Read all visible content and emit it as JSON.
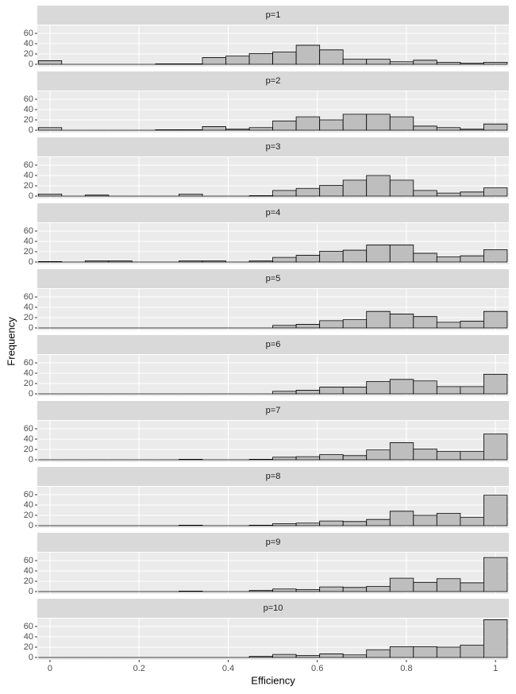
{
  "chart_data": [
    {
      "type": "histogram",
      "title": "p=1",
      "bins": [
        -0.0263,
        0.0263,
        0.0789,
        0.1316,
        0.1842,
        0.2368,
        0.2895,
        0.3421,
        0.3947,
        0.4474,
        0.5,
        0.5526,
        0.6053,
        0.6579,
        0.7105,
        0.7632,
        0.8158,
        0.8684,
        0.9211,
        0.9737,
        1.0263
      ],
      "counts": [
        7,
        0,
        0,
        0,
        0,
        1,
        1,
        13,
        16,
        21,
        24,
        37,
        28,
        10,
        10,
        5,
        8,
        4,
        2,
        4
      ],
      "xlim": [
        -0.0285,
        1.03
      ],
      "ylim": [
        -4.6,
        75.4
      ],
      "yticks": [
        0,
        20,
        40,
        60
      ],
      "color": "#bebebe"
    },
    {
      "type": "histogram",
      "title": "p=2",
      "bins": [
        -0.0263,
        0.0263,
        0.0789,
        0.1316,
        0.1842,
        0.2368,
        0.2895,
        0.3421,
        0.3947,
        0.4474,
        0.5,
        0.5526,
        0.6053,
        0.6579,
        0.7105,
        0.7632,
        0.8158,
        0.8684,
        0.9211,
        0.9737,
        1.0263
      ],
      "counts": [
        5,
        0,
        0,
        0,
        0,
        1,
        1,
        7,
        2,
        5,
        18,
        26,
        20,
        31,
        31,
        26,
        8,
        5,
        2,
        12
      ],
      "xlim": [
        -0.0285,
        1.03
      ],
      "ylim": [
        -4.6,
        75.4
      ],
      "yticks": [
        0,
        20,
        40,
        60
      ],
      "color": "#bebebe"
    },
    {
      "type": "histogram",
      "title": "p=3",
      "bins": [
        -0.0263,
        0.0263,
        0.0789,
        0.1316,
        0.1842,
        0.2368,
        0.2895,
        0.3421,
        0.3947,
        0.4474,
        0.5,
        0.5526,
        0.6053,
        0.6579,
        0.7105,
        0.7632,
        0.8158,
        0.8684,
        0.9211,
        0.9737,
        1.0263
      ],
      "counts": [
        4,
        0,
        2,
        0,
        0,
        0,
        4,
        0,
        0,
        1,
        11,
        15,
        21,
        31,
        40,
        31,
        11,
        6,
        8,
        16
      ],
      "xlim": [
        -0.0285,
        1.03
      ],
      "ylim": [
        -4.6,
        75.4
      ],
      "yticks": [
        0,
        20,
        40,
        60
      ],
      "color": "#bebebe"
    },
    {
      "type": "histogram",
      "title": "p=4",
      "bins": [
        -0.0263,
        0.0263,
        0.0789,
        0.1316,
        0.1842,
        0.2368,
        0.2895,
        0.3421,
        0.3947,
        0.4474,
        0.5,
        0.5526,
        0.6053,
        0.6579,
        0.7105,
        0.7632,
        0.8158,
        0.8684,
        0.9211,
        0.9737,
        1.0263
      ],
      "counts": [
        1,
        0,
        2,
        2,
        0,
        0,
        2,
        2,
        0,
        2,
        9,
        13,
        21,
        23,
        33,
        33,
        17,
        10,
        12,
        24
      ],
      "xlim": [
        -0.0285,
        1.03
      ],
      "ylim": [
        -4.6,
        75.4
      ],
      "yticks": [
        0,
        20,
        40,
        60
      ],
      "color": "#bebebe"
    },
    {
      "type": "histogram",
      "title": "p=5",
      "bins": [
        -0.0263,
        0.0263,
        0.0789,
        0.1316,
        0.1842,
        0.2368,
        0.2895,
        0.3421,
        0.3947,
        0.4474,
        0.5,
        0.5526,
        0.6053,
        0.6579,
        0.7105,
        0.7632,
        0.8158,
        0.8684,
        0.9211,
        0.9737,
        1.0263
      ],
      "counts": [
        0,
        0,
        0,
        0,
        0,
        0,
        0,
        0,
        0,
        0,
        5,
        7,
        14,
        16,
        32,
        27,
        22,
        11,
        13,
        32
      ],
      "xlim": [
        -0.0285,
        1.03
      ],
      "ylim": [
        -4.6,
        75.4
      ],
      "yticks": [
        0,
        20,
        40,
        60
      ],
      "color": "#bebebe"
    },
    {
      "type": "histogram",
      "title": "p=6",
      "bins": [
        -0.0263,
        0.0263,
        0.0789,
        0.1316,
        0.1842,
        0.2368,
        0.2895,
        0.3421,
        0.3947,
        0.4474,
        0.5,
        0.5526,
        0.6053,
        0.6579,
        0.7105,
        0.7632,
        0.8158,
        0.8684,
        0.9211,
        0.9737,
        1.0263
      ],
      "counts": [
        0,
        0,
        0,
        0,
        0,
        0,
        0,
        0,
        0,
        0,
        5,
        7,
        13,
        13,
        24,
        28,
        25,
        14,
        14,
        38
      ],
      "xlim": [
        -0.0285,
        1.03
      ],
      "ylim": [
        -4.6,
        75.4
      ],
      "yticks": [
        0,
        20,
        40,
        60
      ],
      "color": "#bebebe"
    },
    {
      "type": "histogram",
      "title": "p=7",
      "bins": [
        -0.0263,
        0.0263,
        0.0789,
        0.1316,
        0.1842,
        0.2368,
        0.2895,
        0.3421,
        0.3947,
        0.4474,
        0.5,
        0.5526,
        0.6053,
        0.6579,
        0.7105,
        0.7632,
        0.8158,
        0.8684,
        0.9211,
        0.9737,
        1.0263
      ],
      "counts": [
        0,
        0,
        0,
        0,
        0,
        0,
        1,
        0,
        0,
        1,
        5,
        6,
        10,
        8,
        19,
        33,
        21,
        16,
        16,
        50
      ],
      "xlim": [
        -0.0285,
        1.03
      ],
      "ylim": [
        -4.6,
        75.4
      ],
      "yticks": [
        0,
        20,
        40,
        60
      ],
      "color": "#bebebe"
    },
    {
      "type": "histogram",
      "title": "p=8",
      "bins": [
        -0.0263,
        0.0263,
        0.0789,
        0.1316,
        0.1842,
        0.2368,
        0.2895,
        0.3421,
        0.3947,
        0.4474,
        0.5,
        0.5526,
        0.6053,
        0.6579,
        0.7105,
        0.7632,
        0.8158,
        0.8684,
        0.9211,
        0.9737,
        1.0263
      ],
      "counts": [
        0,
        0,
        0,
        0,
        0,
        0,
        1,
        0,
        0,
        1,
        4,
        5,
        9,
        8,
        12,
        28,
        20,
        24,
        16,
        59
      ],
      "xlim": [
        -0.0285,
        1.03
      ],
      "ylim": [
        -4.6,
        75.4
      ],
      "yticks": [
        0,
        20,
        40,
        60
      ],
      "color": "#bebebe"
    },
    {
      "type": "histogram",
      "title": "p=9",
      "bins": [
        -0.0263,
        0.0263,
        0.0789,
        0.1316,
        0.1842,
        0.2368,
        0.2895,
        0.3421,
        0.3947,
        0.4474,
        0.5,
        0.5526,
        0.6053,
        0.6579,
        0.7105,
        0.7632,
        0.8158,
        0.8684,
        0.9211,
        0.9737,
        1.0263
      ],
      "counts": [
        0,
        0,
        0,
        0,
        0,
        0,
        1,
        0,
        0,
        2,
        5,
        4,
        9,
        8,
        10,
        26,
        18,
        25,
        17,
        66
      ],
      "xlim": [
        -0.0285,
        1.03
      ],
      "ylim": [
        -4.6,
        75.4
      ],
      "yticks": [
        0,
        20,
        40,
        60
      ],
      "color": "#bebebe"
    },
    {
      "type": "histogram",
      "title": "p=10",
      "bins": [
        -0.0263,
        0.0263,
        0.0789,
        0.1316,
        0.1842,
        0.2368,
        0.2895,
        0.3421,
        0.3947,
        0.4474,
        0.5,
        0.5526,
        0.6053,
        0.6579,
        0.7105,
        0.7632,
        0.8158,
        0.8684,
        0.9211,
        0.9737,
        1.0263
      ],
      "counts": [
        0,
        0,
        0,
        0,
        0,
        0,
        0,
        0,
        0,
        2,
        6,
        4,
        7,
        5,
        15,
        21,
        21,
        20,
        24,
        73
      ],
      "xlim": [
        -0.0285,
        1.03
      ],
      "ylim": [
        -4.6,
        75.4
      ],
      "yticks": [
        0,
        20,
        40,
        60
      ],
      "color": "#bebebe",
      "xticks": [
        0,
        0.2,
        0.4,
        0.6,
        0.8,
        1
      ],
      "xlabel": "Efficiency",
      "ylabel": "Frequency"
    }
  ]
}
